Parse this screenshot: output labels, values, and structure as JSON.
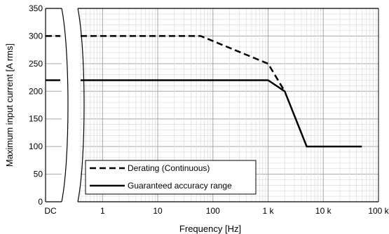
{
  "chart_data": {
    "type": "line",
    "xlabel": "Frequency [Hz]",
    "ylabel": "Maximum input current [A rms]",
    "x_scale": "log",
    "xlim": [
      0.4,
      100000
    ],
    "ylim": [
      0,
      350
    ],
    "y_ticks": [
      0,
      50,
      100,
      150,
      200,
      250,
      300,
      350
    ],
    "x_ticks": [
      {
        "value": 1,
        "label": "1"
      },
      {
        "value": 10,
        "label": "10"
      },
      {
        "value": 100,
        "label": "100"
      },
      {
        "value": 1000,
        "label": "1 k"
      },
      {
        "value": 10000,
        "label": "10 k"
      },
      {
        "value": 100000,
        "label": "100 k"
      }
    ],
    "dc_label": "DC",
    "grid": true,
    "legend_position": "bottom-left",
    "series": [
      {
        "name": "Derating (Continuous)",
        "style": "dashed",
        "color": "#000000",
        "dc_value": 300,
        "x": [
          0.4,
          60,
          1000,
          2000
        ],
        "y": [
          300,
          300,
          250,
          200
        ]
      },
      {
        "name": "Guaranteed accuracy range",
        "style": "solid",
        "color": "#000000",
        "dc_value": 220,
        "x": [
          0.4,
          1000,
          2000,
          5000,
          50000
        ],
        "y": [
          220,
          220,
          200,
          100,
          100
        ]
      }
    ]
  }
}
